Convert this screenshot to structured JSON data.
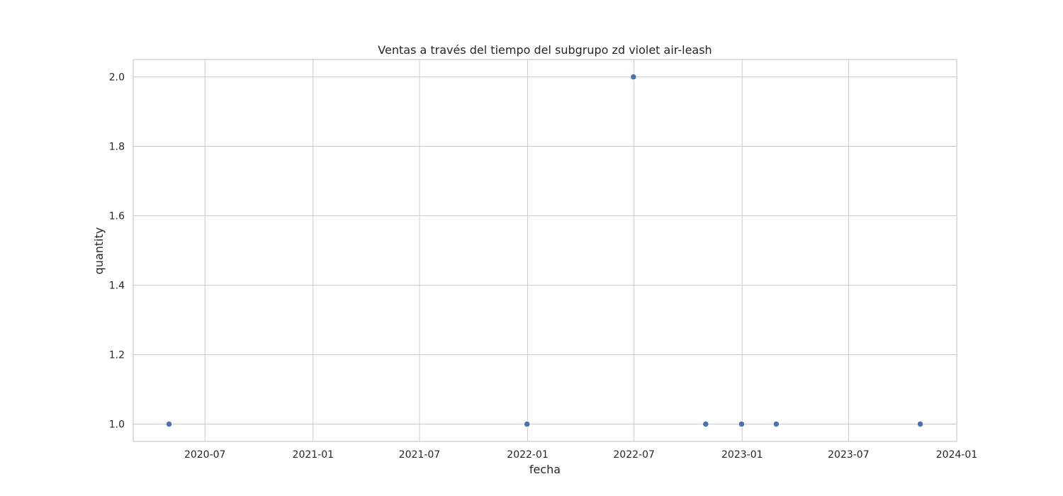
{
  "chart_data": {
    "type": "scatter",
    "title": "Ventas a través del tiempo del subgrupo zd violet air-leash",
    "xlabel": "fecha",
    "ylabel": "quantity",
    "x_axis_type": "date",
    "xlim": [
      "2020-03-01",
      "2024-01-01"
    ],
    "ylim": [
      0.95,
      2.05
    ],
    "x_ticks": [
      "2020-07-01",
      "2021-01-01",
      "2021-07-01",
      "2022-01-01",
      "2022-07-01",
      "2023-01-01",
      "2023-07-01",
      "2024-01-01"
    ],
    "x_tick_labels": [
      "2020-07",
      "2021-01",
      "2021-07",
      "2022-01",
      "2022-07",
      "2023-01",
      "2023-07",
      "2024-01"
    ],
    "y_ticks": [
      1.0,
      1.2,
      1.4,
      1.6,
      1.8,
      2.0
    ],
    "y_tick_labels": [
      "1.0",
      "1.2",
      "1.4",
      "1.6",
      "1.8",
      "2.0"
    ],
    "grid": true,
    "color": "#4c72b0",
    "points": [
      {
        "x": "2020-05-01",
        "y": 1
      },
      {
        "x": "2021-12-31",
        "y": 1
      },
      {
        "x": "2022-06-30",
        "y": 2
      },
      {
        "x": "2022-10-31",
        "y": 1
      },
      {
        "x": "2022-12-31",
        "y": 1
      },
      {
        "x": "2023-02-28",
        "y": 1
      },
      {
        "x": "2023-10-31",
        "y": 1
      }
    ]
  }
}
